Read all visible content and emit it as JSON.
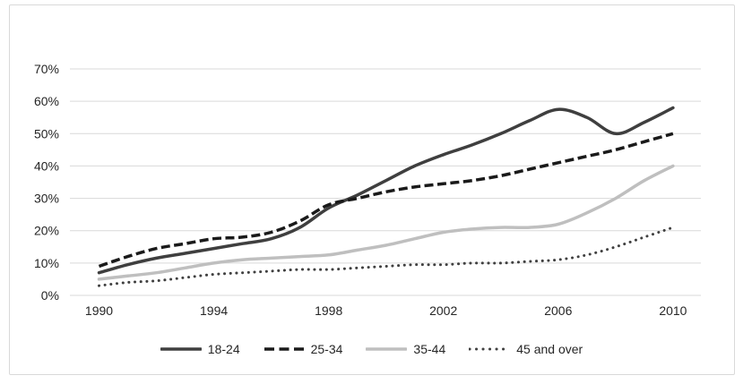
{
  "chart_data": {
    "type": "line",
    "title": "",
    "xlabel": "",
    "ylabel": "",
    "x": [
      1990,
      1991,
      1992,
      1993,
      1994,
      1995,
      1996,
      1997,
      1998,
      1999,
      2000,
      2001,
      2002,
      2003,
      2004,
      2005,
      2006,
      2007,
      2008,
      2009,
      2010
    ],
    "x_tick_labels": [
      "1990",
      "1994",
      "1998",
      "2002",
      "2006",
      "2010"
    ],
    "x_ticks": [
      1990,
      1994,
      1998,
      2002,
      2006,
      2010
    ],
    "ylim": [
      0,
      70
    ],
    "y_ticks": [
      0,
      10,
      20,
      30,
      40,
      50,
      60,
      70
    ],
    "y_tick_labels": [
      "0%",
      "10%",
      "20%",
      "30%",
      "40%",
      "50%",
      "60%",
      "70%"
    ],
    "grid": true,
    "legend_position": "bottom",
    "line_smoothing": true,
    "series": [
      {
        "name": "18-24",
        "style": "solid",
        "color": "#3f3f3f",
        "values": [
          7,
          9.5,
          11.5,
          13,
          14.5,
          16,
          17.5,
          21,
          27,
          31,
          35.5,
          40,
          43.5,
          46.5,
          50,
          54,
          57.5,
          55,
          50,
          53.5,
          58
        ]
      },
      {
        "name": "25-34",
        "style": "dashed",
        "color": "#1a1a1a",
        "values": [
          9,
          12,
          14.5,
          16,
          17.5,
          18,
          19.5,
          23,
          28,
          30,
          32,
          33.5,
          34.5,
          35.5,
          37,
          39,
          41,
          43,
          45,
          47.5,
          50
        ]
      },
      {
        "name": "35-44",
        "style": "solid",
        "color": "#bfbfbf",
        "values": [
          5,
          6,
          7,
          8.5,
          10,
          11,
          11.5,
          12,
          12.5,
          14,
          15.5,
          17.5,
          19.5,
          20.5,
          21,
          21,
          22,
          25.5,
          30,
          35.5,
          40
        ]
      },
      {
        "name": "45 and over",
        "style": "dotted",
        "color": "#404040",
        "values": [
          3,
          4,
          4.5,
          5.5,
          6.5,
          7,
          7.5,
          8,
          8,
          8.5,
          9,
          9.5,
          9.5,
          10,
          10,
          10.5,
          11,
          12.5,
          15,
          18,
          21
        ]
      }
    ]
  },
  "colors": {
    "gridline": "#d9d9d9",
    "axis_line": "#d9d9d9",
    "axis_text": "#262626",
    "card_border": "#d9d9d9",
    "background": "#ffffff"
  }
}
